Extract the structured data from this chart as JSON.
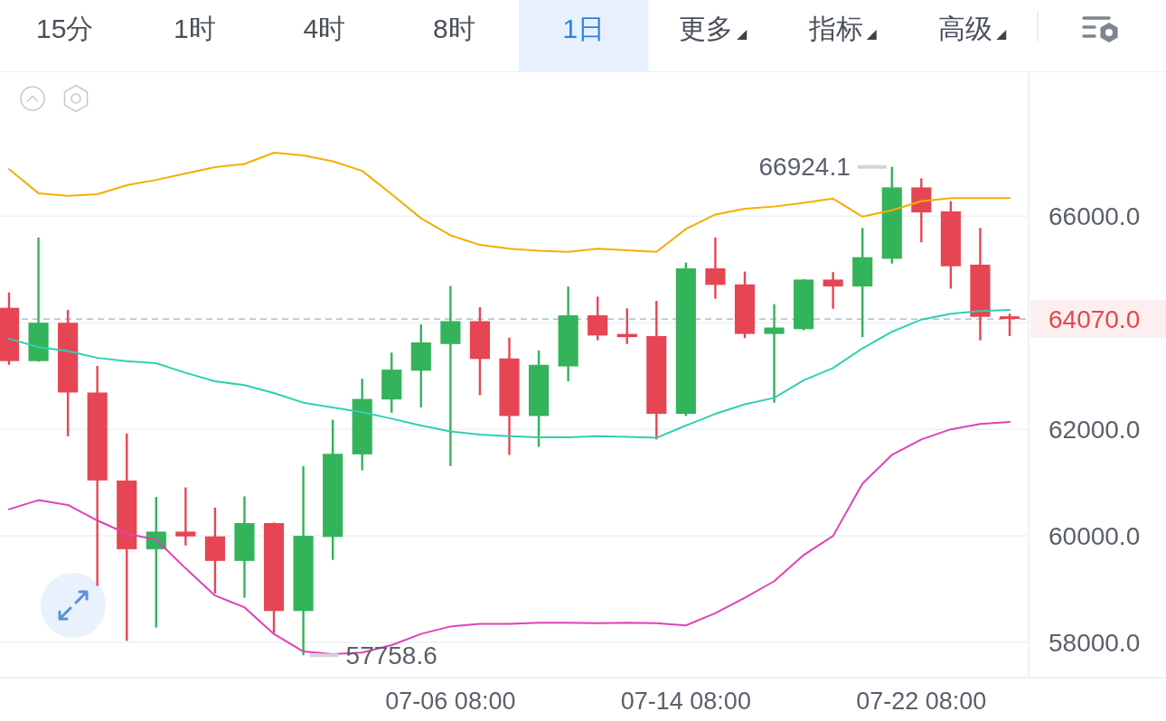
{
  "chart_data": {
    "type": "candlestick",
    "categories": [
      null,
      null,
      null,
      null,
      null,
      null,
      null,
      null,
      null,
      null,
      null,
      null,
      null,
      null,
      null,
      "07-06 08:00",
      null,
      null,
      null,
      null,
      null,
      null,
      null,
      "07-14 08:00",
      null,
      null,
      null,
      null,
      null,
      null,
      null,
      "07-22 08:00",
      null,
      null,
      null
    ],
    "ohlc": [
      [
        64280,
        64570,
        63210,
        63280
      ],
      [
        63280,
        65600,
        63270,
        64000
      ],
      [
        64000,
        64240,
        61870,
        62690
      ],
      [
        62690,
        63190,
        59060,
        61040
      ],
      [
        61040,
        61920,
        58030,
        59750
      ],
      [
        59750,
        60730,
        58280,
        60080
      ],
      [
        60080,
        60910,
        59820,
        59990
      ],
      [
        59990,
        60530,
        58920,
        59530
      ],
      [
        59530,
        60740,
        58840,
        60240
      ],
      [
        60240,
        60250,
        58180,
        58590
      ],
      [
        58590,
        61310,
        57758.6,
        60000
      ],
      [
        59980,
        62180,
        59550,
        61540
      ],
      [
        61530,
        62950,
        61230,
        62570
      ],
      [
        62560,
        63440,
        62310,
        63120
      ],
      [
        63100,
        63970,
        62410,
        63630
      ],
      [
        63600,
        64690,
        61310,
        64030
      ],
      [
        64030,
        64290,
        62640,
        63320
      ],
      [
        63330,
        63720,
        61520,
        62250
      ],
      [
        62250,
        63480,
        61670,
        63210
      ],
      [
        63180,
        64680,
        62900,
        64140
      ],
      [
        64140,
        64490,
        63670,
        63760
      ],
      [
        63790,
        64270,
        63600,
        63730
      ],
      [
        63750,
        64410,
        61810,
        62290
      ],
      [
        62290,
        65130,
        62250,
        65020
      ],
      [
        65020,
        65600,
        64450,
        64710
      ],
      [
        64720,
        64960,
        63710,
        63790
      ],
      [
        63790,
        64350,
        62500,
        63910
      ],
      [
        63880,
        64820,
        63860,
        64810
      ],
      [
        64810,
        64950,
        64260,
        64680
      ],
      [
        64680,
        65780,
        63730,
        65230
      ],
      [
        65200,
        66924.1,
        65110,
        66540
      ],
      [
        66540,
        66710,
        65510,
        66070
      ],
      [
        66090,
        66280,
        64640,
        65060
      ],
      [
        65090,
        65780,
        63670,
        64110
      ],
      [
        64120,
        64170,
        63750,
        64070
      ]
    ],
    "colors": [
      "#e64553",
      "#33b35a",
      "#e64553",
      "#e64553",
      "#e64553",
      "#33b35a",
      "#e64553",
      "#e64553",
      "#33b35a",
      "#e64553",
      "#33b35a",
      "#33b35a",
      "#33b35a",
      "#33b35a",
      "#33b35a",
      "#33b35a",
      "#e64553",
      "#e64553",
      "#33b35a",
      "#33b35a",
      "#e64553",
      "#e64553",
      "#e64553",
      "#33b35a",
      "#e64553",
      "#e64553",
      "#33b35a",
      "#33b35a",
      "#e64553",
      "#33b35a",
      "#33b35a",
      "#e64553",
      "#e64553",
      "#e64553",
      "#e64553"
    ],
    "series": [
      {
        "type": "line",
        "color": "#f5ad00",
        "values": [
          66880,
          66430,
          66380,
          66410,
          66580,
          66680,
          66800,
          66920,
          66980,
          67190,
          67140,
          67030,
          66850,
          66410,
          65960,
          65640,
          65460,
          65390,
          65350,
          65330,
          65390,
          65360,
          65330,
          65760,
          66030,
          66140,
          66180,
          66250,
          66330,
          65990,
          66110,
          66280,
          66340,
          66340,
          66340
        ]
      },
      {
        "type": "line",
        "color": "#2fd0b2",
        "values": [
          63700,
          63540,
          63470,
          63340,
          63280,
          63240,
          63060,
          62900,
          62830,
          62680,
          62500,
          62410,
          62320,
          62200,
          62070,
          61960,
          61900,
          61870,
          61850,
          61850,
          61870,
          61860,
          61840,
          62070,
          62290,
          62470,
          62590,
          62920,
          63150,
          63520,
          63830,
          64060,
          64170,
          64220,
          64240
        ]
      },
      {
        "type": "line",
        "color": "#e041b8",
        "values": [
          60500,
          60670,
          60580,
          60290,
          60040,
          59930,
          59390,
          58880,
          58660,
          58160,
          57830,
          57780,
          57810,
          57950,
          58160,
          58300,
          58350,
          58350,
          58370,
          58370,
          58360,
          58370,
          58360,
          58320,
          58550,
          58840,
          59150,
          59640,
          60000,
          60980,
          61520,
          61810,
          62000,
          62100,
          62140
        ]
      }
    ],
    "ylim": [
      57340,
      68700
    ],
    "yticks": [
      {
        "value": 58000,
        "label": "58000.0"
      },
      {
        "value": 60000,
        "label": "60000.0"
      },
      {
        "value": 62000,
        "label": "62000.0"
      },
      {
        "value": 64000,
        "label": null
      },
      {
        "value": 66000,
        "label": "66000.0"
      }
    ],
    "grid": "y",
    "ref_lines": [
      {
        "axis": "y",
        "value": 64070,
        "label": "64070.0",
        "color": "#a4b0c2",
        "line_style": "dashed"
      }
    ],
    "annotations": [
      "15分",
      "1时",
      "4时",
      "8时",
      "1日",
      "更多",
      "指标",
      "高级",
      "66924.1",
      "57758.6"
    ]
  }
}
